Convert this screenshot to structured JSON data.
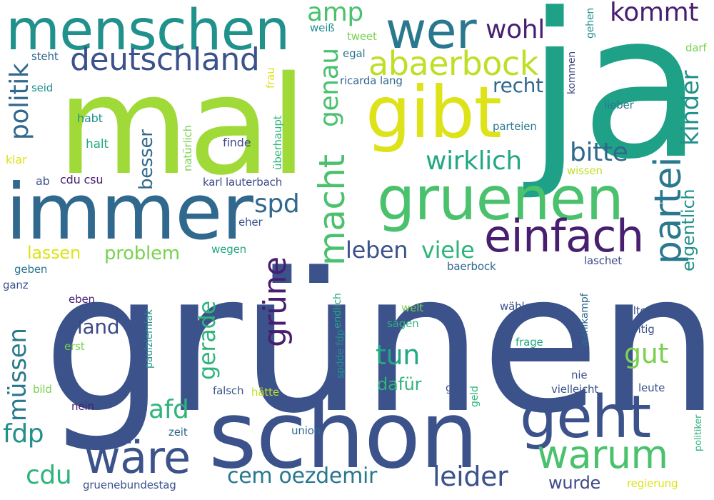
{
  "words": [
    {
      "text": "grünen",
      "color": "#3b528b",
      "vertical": false
    },
    {
      "text": "mal",
      "color": "#a0da39",
      "vertical": false
    },
    {
      "text": "ja",
      "color": "#1fa187",
      "vertical": false
    },
    {
      "text": "immer",
      "color": "#31688e",
      "vertical": false
    },
    {
      "text": "schon",
      "color": "#3b528b",
      "vertical": false
    },
    {
      "text": "gibt",
      "color": "#dde318",
      "vertical": false
    },
    {
      "text": "gruenen",
      "color": "#4ac16d",
      "vertical": false
    },
    {
      "text": "menschen",
      "color": "#21918c",
      "vertical": false
    },
    {
      "text": "wer",
      "color": "#2a788e",
      "vertical": false
    },
    {
      "text": "geht",
      "color": "#3b528b",
      "vertical": false
    },
    {
      "text": "einfach",
      "color": "#481f70",
      "vertical": false
    },
    {
      "text": "wäre",
      "color": "#3b528b",
      "vertical": false
    },
    {
      "text": "warum",
      "color": "#4ac16d",
      "vertical": false
    },
    {
      "text": "partei",
      "color": "#2a788e",
      "vertical": true
    },
    {
      "text": "macht",
      "color": "#4ac16d",
      "vertical": true
    },
    {
      "text": "abaerbock",
      "color": "#bddf26",
      "vertical": false
    },
    {
      "text": "deutschland",
      "color": "#3b528b",
      "vertical": false
    },
    {
      "text": "grüne",
      "color": "#481f70",
      "vertical": true
    },
    {
      "text": "kommt",
      "color": "#481f70",
      "vertical": false
    },
    {
      "text": "wohl",
      "color": "#481f70",
      "vertical": false
    },
    {
      "text": "amp",
      "color": "#4ac16d",
      "vertical": false
    },
    {
      "text": "genau",
      "color": "#4ac16d",
      "vertical": true
    },
    {
      "text": "recht",
      "color": "#31688e",
      "vertical": false
    },
    {
      "text": "bitte",
      "color": "#31688e",
      "vertical": false
    },
    {
      "text": "kinder",
      "color": "#21918c",
      "vertical": true
    },
    {
      "text": "eigentlich",
      "color": "#21918c",
      "vertical": true
    },
    {
      "text": "wirklich",
      "color": "#22a884",
      "vertical": false
    },
    {
      "text": "politik",
      "color": "#31688e",
      "vertical": true
    },
    {
      "text": "spd",
      "color": "#31688e",
      "vertical": false
    },
    {
      "text": "leben",
      "color": "#3b528b",
      "vertical": false
    },
    {
      "text": "viele",
      "color": "#2fb47c",
      "vertical": false
    },
    {
      "text": "besser",
      "color": "#31688e",
      "vertical": true
    },
    {
      "text": "lassen",
      "color": "#dde318",
      "vertical": false
    },
    {
      "text": "problem",
      "color": "#7ad151",
      "vertical": false
    },
    {
      "text": "müssen",
      "color": "#2a788e",
      "vertical": true
    },
    {
      "text": "land",
      "color": "#3e4a89",
      "vertical": false
    },
    {
      "text": "gerade",
      "color": "#2fb47c",
      "vertical": true
    },
    {
      "text": "tun",
      "color": "#22a884",
      "vertical": false
    },
    {
      "text": "gut",
      "color": "#7ad151",
      "vertical": false
    },
    {
      "text": "afd",
      "color": "#2fb47c",
      "vertical": false
    },
    {
      "text": "fdp",
      "color": "#21918c",
      "vertical": false
    },
    {
      "text": "cdu",
      "color": "#2fb47c",
      "vertical": false
    },
    {
      "text": "cem oezdemir",
      "color": "#2a788e",
      "vertical": false
    },
    {
      "text": "leider",
      "color": "#3b528b",
      "vertical": false
    },
    {
      "text": "dafür",
      "color": "#2fb47c",
      "vertical": false
    },
    {
      "text": "wurde",
      "color": "#3e4a89",
      "vertical": false
    },
    {
      "text": "steht",
      "color": "#31688e",
      "vertical": false
    },
    {
      "text": "seid",
      "color": "#21918c",
      "vertical": false
    },
    {
      "text": "habt",
      "color": "#21918c",
      "vertical": false
    },
    {
      "text": "halt",
      "color": "#22a884",
      "vertical": false
    },
    {
      "text": "klar",
      "color": "#dde318",
      "vertical": false
    },
    {
      "text": "ab",
      "color": "#3b528b",
      "vertical": false
    },
    {
      "text": "cdu csu",
      "color": "#481f70",
      "vertical": false
    },
    {
      "text": "karl lauterbach",
      "color": "#3e4a89",
      "vertical": false
    },
    {
      "text": "finde",
      "color": "#3e4a89",
      "vertical": false
    },
    {
      "text": "natürlich",
      "color": "#7ad151",
      "vertical": true
    },
    {
      "text": "frau",
      "color": "#dde318",
      "vertical": true
    },
    {
      "text": "überhaupt",
      "color": "#2fb47c",
      "vertical": true
    },
    {
      "text": "weiß",
      "color": "#21918c",
      "vertical": false
    },
    {
      "text": "tweet",
      "color": "#7ad151",
      "vertical": false
    },
    {
      "text": "egal",
      "color": "#2a788e",
      "vertical": false
    },
    {
      "text": "ricarda lang",
      "color": "#31688e",
      "vertical": false
    },
    {
      "text": "eher",
      "color": "#3b528b",
      "vertical": false
    },
    {
      "text": "wegen",
      "color": "#22a884",
      "vertical": false
    },
    {
      "text": "gehen",
      "color": "#21918c",
      "vertical": true
    },
    {
      "text": "kommen",
      "color": "#3e4a89",
      "vertical": true
    },
    {
      "text": "darf",
      "color": "#7ad151",
      "vertical": false
    },
    {
      "text": "lieber",
      "color": "#2a788e",
      "vertical": false
    },
    {
      "text": "parteien",
      "color": "#2a788e",
      "vertical": false
    },
    {
      "text": "wissen",
      "color": "#bddf26",
      "vertical": false
    },
    {
      "text": "baerbock",
      "color": "#31688e",
      "vertical": false
    },
    {
      "text": "laschet",
      "color": "#3e4a89",
      "vertical": false
    },
    {
      "text": "geben",
      "color": "#2a788e",
      "vertical": false
    },
    {
      "text": "ganz",
      "color": "#3b528b",
      "vertical": false
    },
    {
      "text": "eben",
      "color": "#481f70",
      "vertical": false
    },
    {
      "text": "endlich",
      "color": "#22a884",
      "vertical": true
    },
    {
      "text": "paulziemiak",
      "color": "#21918c",
      "vertical": true
    },
    {
      "text": "welt",
      "color": "#7ad151",
      "vertical": false
    },
    {
      "text": "sagen",
      "color": "#2fb47c",
      "vertical": false
    },
    {
      "text": "wählen",
      "color": "#3b528b",
      "vertical": false
    },
    {
      "text": "wahlkampf",
      "color": "#31688e",
      "vertical": true
    },
    {
      "text": "sollten",
      "color": "#3b528b",
      "vertical": false
    },
    {
      "text": "richtig",
      "color": "#3b528b",
      "vertical": false
    },
    {
      "text": "frage",
      "color": "#22a884",
      "vertical": false
    },
    {
      "text": "erst",
      "color": "#7ad151",
      "vertical": false
    },
    {
      "text": "spdde fdp",
      "color": "#21918c",
      "vertical": true
    },
    {
      "text": "bild",
      "color": "#7ad151",
      "vertical": false
    },
    {
      "text": "gar",
      "color": "#3b528b",
      "vertical": false
    },
    {
      "text": "geld",
      "color": "#2fb47c",
      "vertical": true
    },
    {
      "text": "nie",
      "color": "#3b528b",
      "vertical": false
    },
    {
      "text": "vielleicht",
      "color": "#3b528b",
      "vertical": false
    },
    {
      "text": "leute",
      "color": "#3b528b",
      "vertical": false
    },
    {
      "text": "politiker",
      "color": "#2fb47c",
      "vertical": true
    },
    {
      "text": "falsch",
      "color": "#3b528b",
      "vertical": false
    },
    {
      "text": "hätte",
      "color": "#bddf26",
      "vertical": false
    },
    {
      "text": "nein",
      "color": "#481f70",
      "vertical": false
    },
    {
      "text": "zeit",
      "color": "#31688e",
      "vertical": false
    },
    {
      "text": "union",
      "color": "#31688e",
      "vertical": false
    },
    {
      "text": "gruenebundestag",
      "color": "#3b528b",
      "vertical": false
    },
    {
      "text": "regierung",
      "color": "#dde318",
      "vertical": false
    }
  ]
}
